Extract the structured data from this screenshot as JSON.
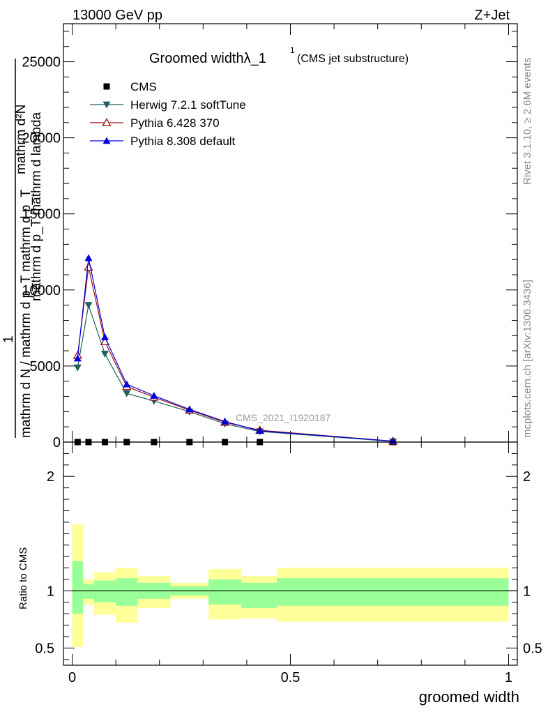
{
  "header": {
    "left": "13000 GeV pp",
    "right": "Z+Jet"
  },
  "side_text": {
    "rivet": "Rivet 3.1.10, ≥ 2.6M events",
    "mcplots": "mcplots.cern.ch [arXiv:1306.3436]"
  },
  "watermark": "CMS_2021_I1920187",
  "chart_data": [
    {
      "type": "line",
      "title_main": "Groomed widthλ_1",
      "title_sup": "1",
      "title_sub": "(CMS jet substructure)",
      "ylabel_top": "mathrm d²N",
      "ylabel_mid": "mathrm d p_T mathrm d lambda",
      "ylabel_num": "1",
      "ylabel_bottom": "mathrm d N / mathrm d p_T mathrm d p_T",
      "xlim": [
        -0.02,
        1.02
      ],
      "ylim": [
        0,
        27500
      ],
      "y_ticks": [
        0,
        5000,
        10000,
        15000,
        20000,
        25000
      ],
      "y_tick_labels": [
        "0",
        "5000",
        "10000",
        "15000",
        "20000",
        "25000"
      ],
      "legend": "top-left",
      "series": [
        {
          "name": "CMS",
          "color": "#000000",
          "marker": "square",
          "x": [
            0.0125,
            0.0375,
            0.075,
            0.125,
            0.1875,
            0.2688,
            0.35,
            0.43,
            0.735
          ],
          "y": [
            0,
            0,
            0,
            0,
            0,
            0,
            0,
            0,
            0
          ]
        },
        {
          "name": "Herwig 7.2.1 softTune",
          "color": "#1f5f5f",
          "marker": "triangle-down",
          "x": [
            0.0125,
            0.0375,
            0.075,
            0.125,
            0.1875,
            0.2688,
            0.35,
            0.43,
            0.735
          ],
          "y": [
            4900,
            9000,
            5800,
            3200,
            2700,
            2000,
            1200,
            700,
            40
          ]
        },
        {
          "name": "Pythia 6.428 370",
          "color": "#a01010",
          "marker": "triangle-up-open",
          "x": [
            0.0125,
            0.0375,
            0.075,
            0.125,
            0.1875,
            0.2688,
            0.35,
            0.43,
            0.735
          ],
          "y": [
            5700,
            11500,
            6600,
            3650,
            2950,
            2100,
            1300,
            780,
            60
          ]
        },
        {
          "name": "Pythia 8.308 default",
          "color": "#0000dd",
          "marker": "triangle-up",
          "x": [
            0.0125,
            0.0375,
            0.075,
            0.125,
            0.1875,
            0.2688,
            0.35,
            0.43,
            0.735
          ],
          "y": [
            5500,
            12100,
            6900,
            3800,
            3050,
            2150,
            1350,
            740,
            60
          ]
        }
      ]
    },
    {
      "type": "area",
      "ylabel": "Ratio to CMS",
      "xlabel": "groomed width",
      "xlim": [
        -0.02,
        1.02
      ],
      "ylim": [
        0.35,
        2.3
      ],
      "y_ticks": [
        0.5,
        1,
        2
      ],
      "y_tick_labels": [
        "0.5",
        "1",
        "2"
      ],
      "x_ticks": [
        0,
        0.5,
        1
      ],
      "x_tick_labels": [
        "0",
        "0.5",
        "1"
      ],
      "bins": [
        0,
        0.025,
        0.05,
        0.1,
        0.15,
        0.225,
        0.3125,
        0.3875,
        0.4687,
        1.0
      ],
      "band_outer_color": "#ffff99",
      "band_inner_color": "#99ff99",
      "outer_low": [
        0.51,
        0.88,
        0.79,
        0.72,
        0.85,
        0.93,
        0.75,
        0.76,
        0.73
      ],
      "outer_high": [
        1.58,
        1.1,
        1.16,
        1.2,
        1.13,
        1.07,
        1.19,
        1.13,
        1.2
      ],
      "inner_low": [
        0.8,
        0.93,
        0.9,
        0.87,
        0.93,
        0.96,
        0.88,
        0.85,
        0.87
      ],
      "inner_high": [
        1.26,
        1.06,
        1.09,
        1.11,
        1.07,
        1.04,
        1.1,
        1.07,
        1.11
      ],
      "reference_line": 1
    }
  ]
}
